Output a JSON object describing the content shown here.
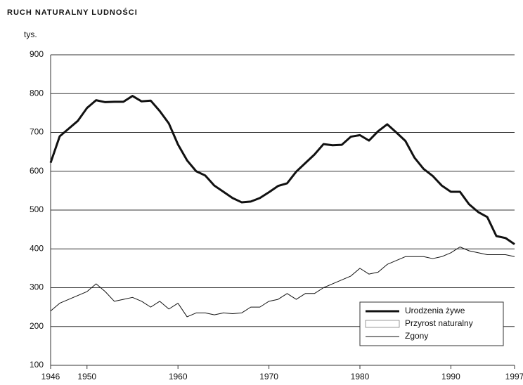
{
  "chart_data": {
    "type": "line",
    "title": "RUCH NATURALNY LUDNOŚCI",
    "y_label": "tys.",
    "x": [
      1946,
      1947,
      1948,
      1949,
      1950,
      1951,
      1952,
      1953,
      1954,
      1955,
      1956,
      1957,
      1958,
      1959,
      1960,
      1961,
      1962,
      1963,
      1964,
      1965,
      1966,
      1967,
      1968,
      1969,
      1970,
      1971,
      1972,
      1973,
      1974,
      1975,
      1976,
      1977,
      1978,
      1979,
      1980,
      1981,
      1982,
      1983,
      1984,
      1985,
      1986,
      1987,
      1988,
      1989,
      1990,
      1991,
      1992,
      1993,
      1994,
      1995,
      1996,
      1997
    ],
    "series": [
      {
        "name": "Urodzenia żywe",
        "color": "#111111",
        "linewidth": 3,
        "values": [
          622,
          690,
          710,
          730,
          763,
          783,
          778,
          779,
          779,
          794,
          780,
          782,
          755,
          723,
          669,
          628,
          600,
          589,
          563,
          547,
          531,
          520,
          522,
          531,
          546,
          562,
          569,
          599,
          621,
          643,
          670,
          667,
          668,
          689,
          693,
          679,
          703,
          721,
          700,
          678,
          635,
          606,
          588,
          563,
          547,
          547,
          515,
          495,
          482,
          433,
          428,
          412
        ]
      },
      {
        "name": "Przyrost naturalny",
        "color": "#ffffff"
      },
      {
        "name": "Zgony",
        "color": "#111111",
        "linewidth": 1,
        "values": [
          240,
          260,
          270,
          280,
          290,
          310,
          290,
          265,
          270,
          275,
          265,
          250,
          265,
          245,
          260,
          225,
          235,
          235,
          230,
          235,
          233,
          235,
          250,
          250,
          265,
          270,
          285,
          270,
          285,
          285,
          300,
          310,
          320,
          330,
          350,
          335,
          340,
          360,
          370,
          380,
          380,
          380,
          375,
          380,
          390,
          405,
          395,
          390,
          385,
          385,
          385,
          380
        ]
      }
    ],
    "xlim": [
      1946,
      1997
    ],
    "xticks": [
      1946,
      1950,
      1960,
      1970,
      1980,
      1990,
      1997
    ],
    "ylim": [
      100,
      900
    ],
    "yticks": [
      100,
      200,
      300,
      400,
      500,
      600,
      700,
      800,
      900
    ],
    "grid": true
  }
}
